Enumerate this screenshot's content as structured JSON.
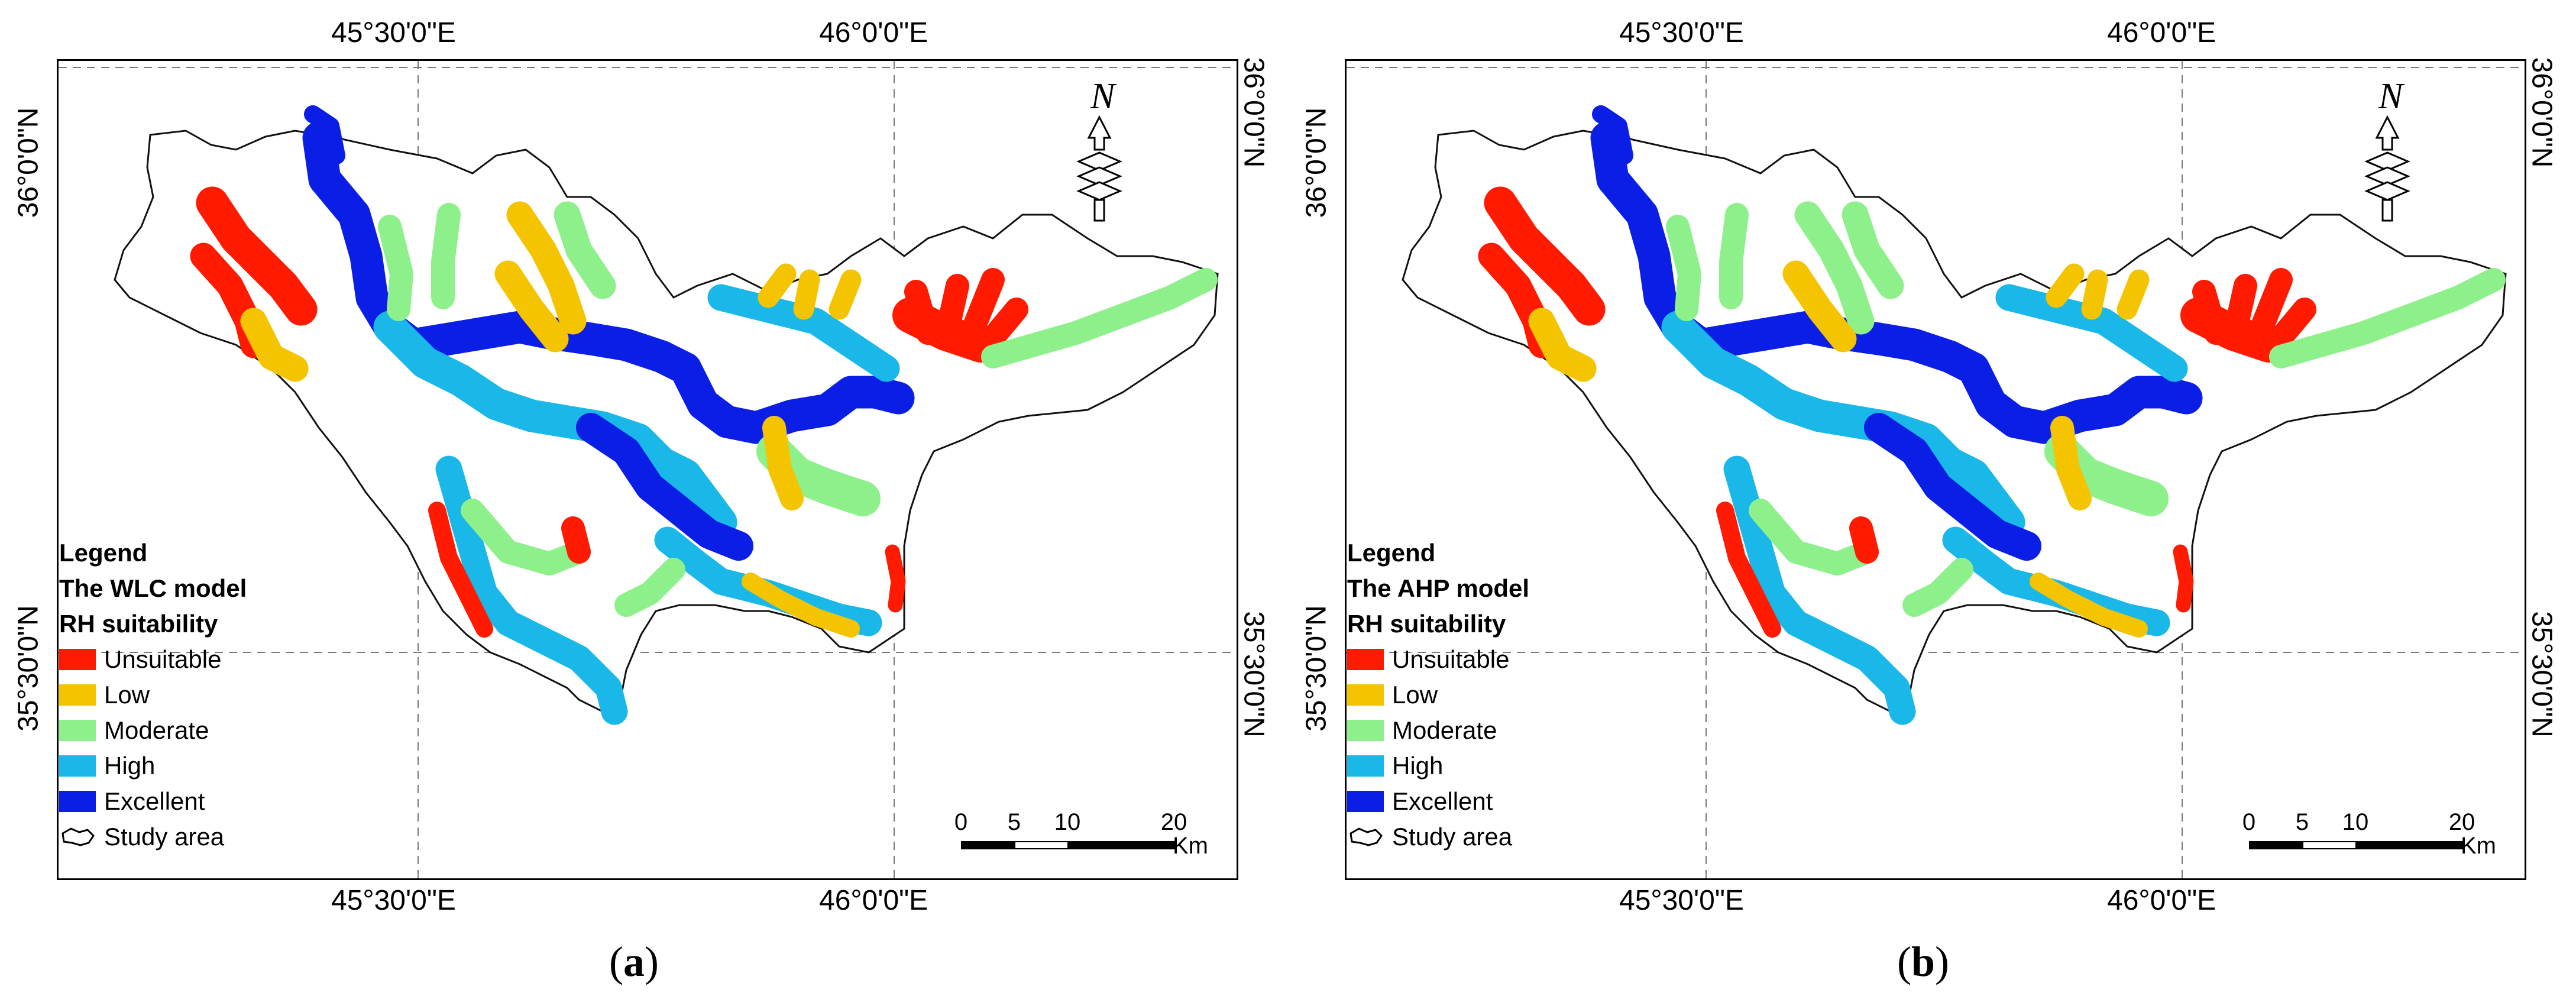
{
  "panels": [
    {
      "id": "a",
      "label_letter": "a",
      "top_coords": [
        "45°30'0\"E",
        "46°0'0\"E"
      ],
      "bottom_coords": [
        "45°30'0\"E",
        "46°0'0\"E"
      ],
      "left_coords": [
        "36°0'0\"N",
        "35°30'0\"N"
      ],
      "right_coords": [
        "36°0'0\"N",
        "35°30'0\"N"
      ],
      "legend": {
        "title": "Legend",
        "model": "The WLC model",
        "subtitle": "RH suitability",
        "classes": [
          "Unsuitable",
          "Low",
          "Moderate",
          "High",
          "Excellent"
        ],
        "study_area": "Study area"
      },
      "north": "N",
      "scale": {
        "ticks": [
          "0",
          "5",
          "10",
          "20"
        ],
        "unit": "Km"
      }
    },
    {
      "id": "b",
      "label_letter": "b",
      "top_coords": [
        "45°30'0\"E",
        "46°0'0\"E"
      ],
      "bottom_coords": [
        "45°30'0\"E",
        "46°0'0\"E"
      ],
      "left_coords": [
        "36°0'0\"N",
        "35°30'0\"N"
      ],
      "right_coords": [
        "36°0'0\"N",
        "35°30'0\"N"
      ],
      "legend": {
        "title": "Legend",
        "model": "The AHP model",
        "subtitle": "RH suitability",
        "classes": [
          "Unsuitable",
          "Low",
          "Moderate",
          "High",
          "Excellent"
        ],
        "study_area": "Study area"
      },
      "north": "N",
      "scale": {
        "ticks": [
          "0",
          "5",
          "10",
          "20"
        ],
        "unit": "Km"
      }
    }
  ],
  "colors": {
    "Unsuitable": "#ff1a00",
    "Low": "#f5c400",
    "Moderate": "#8ef08a",
    "High": "#19b8e8",
    "Excellent": "#0a1ee6"
  }
}
